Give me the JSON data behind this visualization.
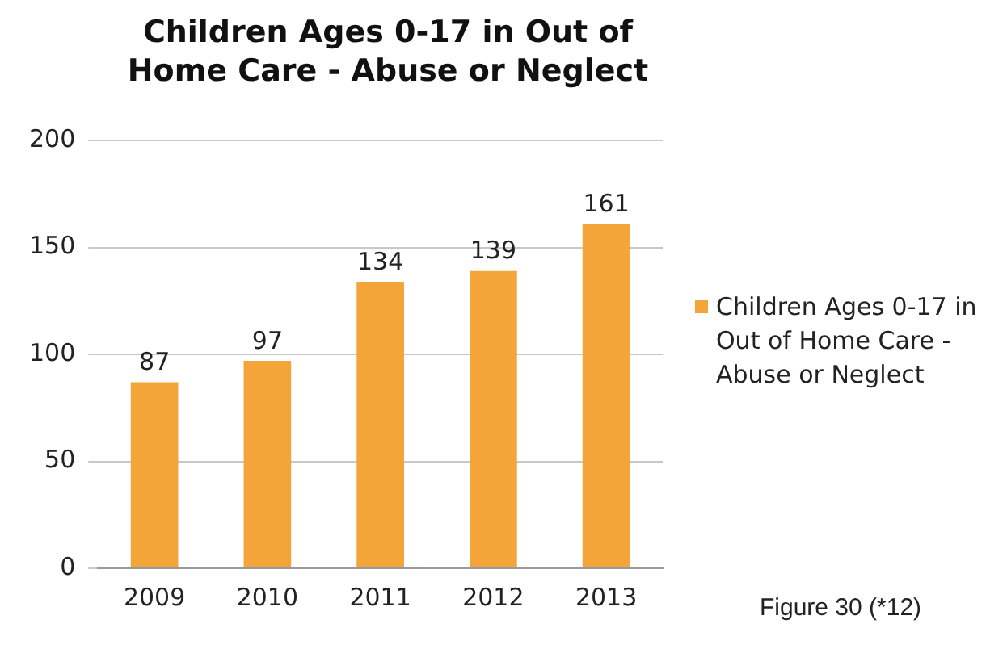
{
  "chart_data": {
    "type": "bar",
    "title": "Children Ages 0-17 in Out of Home Care - Abuse or Neglect",
    "categories": [
      "2009",
      "2010",
      "2011",
      "2012",
      "2013"
    ],
    "series": [
      {
        "name": "Children Ages 0-17 in Out of Home Care - Abuse or Neglect",
        "color": "#f4a53a",
        "values": [
          87,
          97,
          134,
          139,
          161
        ]
      }
    ],
    "ylim": [
      0,
      200
    ],
    "yticks": [
      0,
      50,
      100,
      150,
      200
    ],
    "grid": "y",
    "legend": "right",
    "data_labels": true,
    "annotations": [
      "Figure 30 (*12)"
    ]
  }
}
